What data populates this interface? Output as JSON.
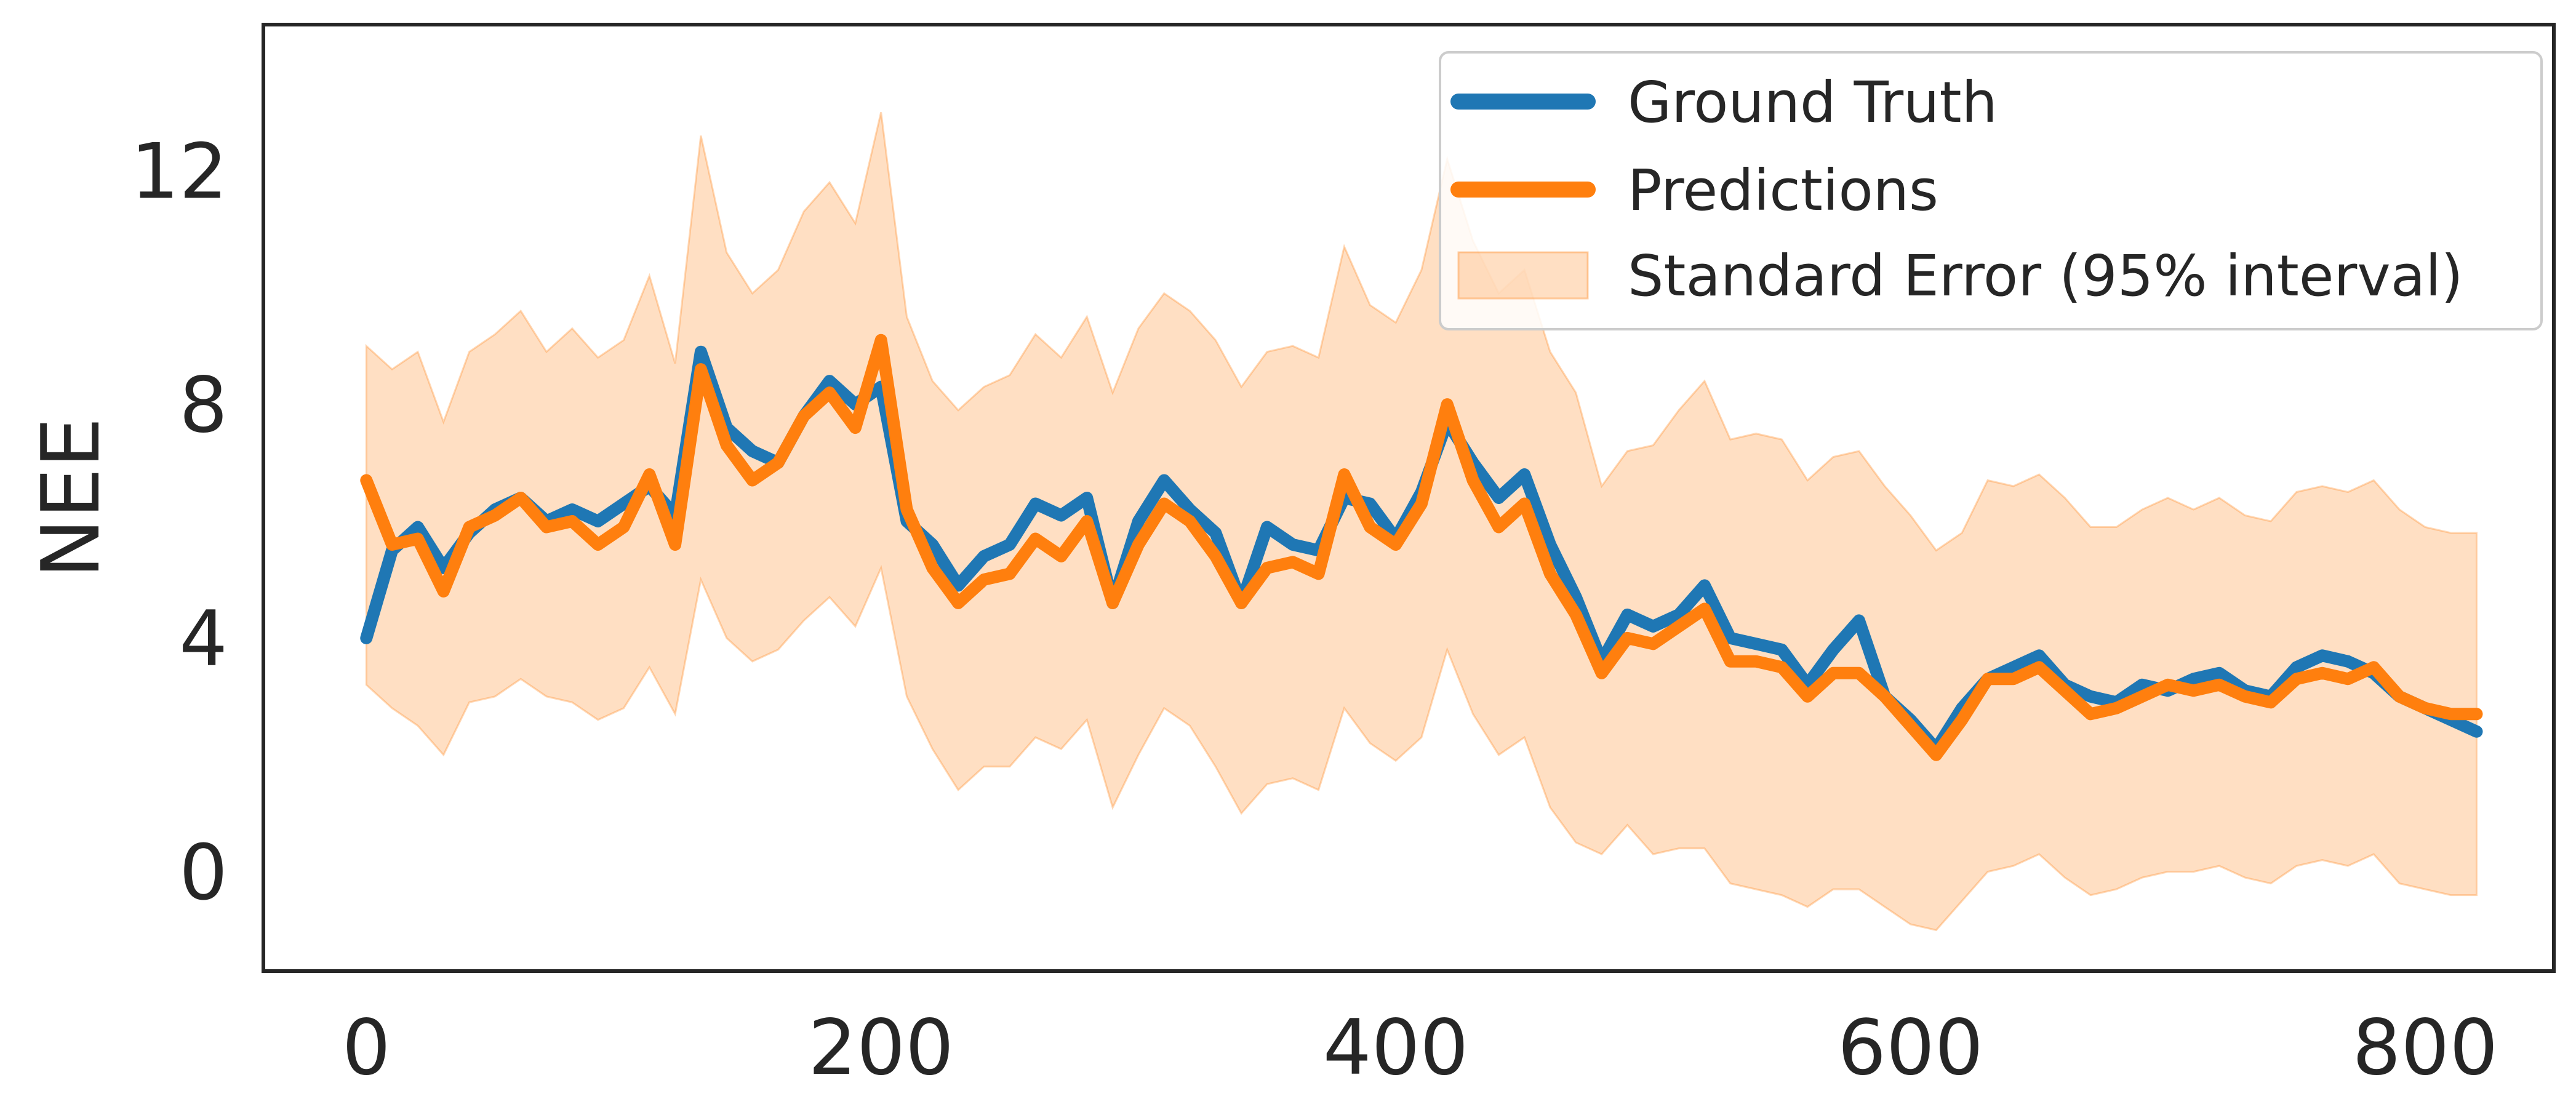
{
  "chart_data": {
    "type": "line",
    "title": "",
    "xlabel": "",
    "ylabel": "NEE",
    "xlim": [
      -40,
      850
    ],
    "ylim": [
      -1.7,
      14.5
    ],
    "xticks": [
      0,
      200,
      400,
      600,
      800
    ],
    "yticks": [
      0,
      4,
      8,
      12
    ],
    "grid": false,
    "legend_position": "top-right",
    "series": [
      {
        "name": "Ground Truth",
        "color": "#1f77b4",
        "x": [
          0,
          10,
          20,
          30,
          40,
          50,
          60,
          70,
          80,
          90,
          100,
          110,
          120,
          130,
          140,
          150,
          160,
          170,
          180,
          190,
          200,
          210,
          220,
          230,
          240,
          250,
          260,
          270,
          280,
          290,
          300,
          310,
          320,
          330,
          340,
          350,
          360,
          370,
          380,
          390,
          400,
          410,
          420,
          430,
          440,
          450,
          460,
          470,
          480,
          490,
          500,
          510,
          520,
          530,
          540,
          550,
          560,
          570,
          580,
          590,
          600,
          610,
          620,
          630,
          640,
          650,
          660,
          670,
          680,
          690,
          700,
          710,
          720,
          730,
          740,
          750,
          760,
          770,
          780,
          790,
          800,
          810,
          820
        ],
        "y": [
          4.0,
          5.5,
          5.9,
          5.2,
          5.8,
          6.2,
          6.4,
          6.0,
          6.2,
          6.0,
          6.3,
          6.6,
          6.1,
          8.9,
          7.6,
          7.2,
          7.0,
          7.8,
          8.4,
          8.0,
          8.3,
          6.0,
          5.6,
          4.9,
          5.4,
          5.6,
          6.3,
          6.1,
          6.4,
          4.6,
          6.0,
          6.7,
          6.2,
          5.8,
          4.6,
          5.9,
          5.6,
          5.5,
          6.4,
          6.3,
          5.7,
          6.5,
          7.7,
          7.0,
          6.4,
          6.8,
          5.6,
          4.7,
          3.6,
          4.4,
          4.2,
          4.4,
          4.9,
          4.0,
          3.9,
          3.8,
          3.2,
          3.8,
          4.3,
          3.0,
          2.6,
          2.1,
          2.8,
          3.3,
          3.5,
          3.7,
          3.2,
          3.0,
          2.9,
          3.2,
          3.1,
          3.3,
          3.4,
          3.1,
          3.0,
          3.5,
          3.7,
          3.6,
          3.4,
          3.0,
          2.8,
          2.6,
          2.4
        ]
      },
      {
        "name": "Predictions",
        "color": "#ff7f0e",
        "x": [
          0,
          10,
          20,
          30,
          40,
          50,
          60,
          70,
          80,
          90,
          100,
          110,
          120,
          130,
          140,
          150,
          160,
          170,
          180,
          190,
          200,
          210,
          220,
          230,
          240,
          250,
          260,
          270,
          280,
          290,
          300,
          310,
          320,
          330,
          340,
          350,
          360,
          370,
          380,
          390,
          400,
          410,
          420,
          430,
          440,
          450,
          460,
          470,
          480,
          490,
          500,
          510,
          520,
          530,
          540,
          550,
          560,
          570,
          580,
          590,
          600,
          610,
          620,
          630,
          640,
          650,
          660,
          670,
          680,
          690,
          700,
          710,
          720,
          730,
          740,
          750,
          760,
          770,
          780,
          790,
          800,
          810,
          820
        ],
        "y": [
          6.7,
          5.6,
          5.7,
          4.8,
          5.9,
          6.1,
          6.4,
          5.9,
          6.0,
          5.6,
          5.9,
          6.8,
          5.6,
          8.6,
          7.3,
          6.7,
          7.0,
          7.8,
          8.2,
          7.6,
          9.1,
          6.2,
          5.2,
          4.6,
          5.0,
          5.1,
          5.7,
          5.4,
          6.0,
          4.6,
          5.6,
          6.3,
          6.0,
          5.4,
          4.6,
          5.2,
          5.3,
          5.1,
          6.8,
          5.9,
          5.6,
          6.3,
          8.0,
          6.7,
          5.9,
          6.3,
          5.1,
          4.4,
          3.4,
          4.0,
          3.9,
          4.2,
          4.5,
          3.6,
          3.6,
          3.5,
          3.0,
          3.4,
          3.4,
          3.0,
          2.5,
          2.0,
          2.6,
          3.3,
          3.3,
          3.5,
          3.1,
          2.7,
          2.8,
          3.0,
          3.2,
          3.1,
          3.2,
          3.0,
          2.9,
          3.3,
          3.4,
          3.3,
          3.5,
          3.0,
          2.8,
          2.7,
          2.7
        ]
      },
      {
        "name": "Standard Error (95% interval)",
        "color": "#ff7f0e",
        "kind": "band",
        "x": [
          0,
          10,
          20,
          30,
          40,
          50,
          60,
          70,
          80,
          90,
          100,
          110,
          120,
          130,
          140,
          150,
          160,
          170,
          180,
          190,
          200,
          210,
          220,
          230,
          240,
          250,
          260,
          270,
          280,
          290,
          300,
          310,
          320,
          330,
          340,
          350,
          360,
          370,
          380,
          390,
          400,
          410,
          420,
          430,
          440,
          450,
          460,
          470,
          480,
          490,
          500,
          510,
          520,
          530,
          540,
          550,
          560,
          570,
          580,
          590,
          600,
          610,
          620,
          630,
          640,
          650,
          660,
          670,
          680,
          690,
          700,
          710,
          720,
          730,
          740,
          750,
          760,
          770,
          780,
          790,
          800,
          810,
          820
        ],
        "lower": [
          3.2,
          2.8,
          2.5,
          2.0,
          2.9,
          3.0,
          3.3,
          3.0,
          2.9,
          2.6,
          2.8,
          3.5,
          2.7,
          5.0,
          4.0,
          3.6,
          3.8,
          4.3,
          4.7,
          4.2,
          5.2,
          3.0,
          2.1,
          1.4,
          1.8,
          1.8,
          2.3,
          2.1,
          2.6,
          1.1,
          2.0,
          2.8,
          2.5,
          1.8,
          1.0,
          1.5,
          1.6,
          1.4,
          2.8,
          2.2,
          1.9,
          2.3,
          3.8,
          2.7,
          2.0,
          2.3,
          1.1,
          0.5,
          0.3,
          0.8,
          0.3,
          0.4,
          0.4,
          -0.2,
          -0.3,
          -0.4,
          -0.6,
          -0.3,
          -0.3,
          -0.6,
          -0.9,
          -1.0,
          -0.5,
          0.0,
          0.1,
          0.3,
          -0.1,
          -0.4,
          -0.3,
          -0.1,
          0.0,
          0.0,
          0.1,
          -0.1,
          -0.2,
          0.1,
          0.2,
          0.1,
          0.3,
          -0.2,
          -0.3,
          -0.4,
          -0.4
        ],
        "upper": [
          9.0,
          8.6,
          8.9,
          7.7,
          8.9,
          9.2,
          9.6,
          8.9,
          9.3,
          8.8,
          9.1,
          10.2,
          8.7,
          12.6,
          10.6,
          9.9,
          10.3,
          11.3,
          11.8,
          11.1,
          13.0,
          9.5,
          8.4,
          7.9,
          8.3,
          8.5,
          9.2,
          8.8,
          9.5,
          8.2,
          9.3,
          9.9,
          9.6,
          9.1,
          8.3,
          8.9,
          9.0,
          8.8,
          10.7,
          9.7,
          9.4,
          10.3,
          12.2,
          10.8,
          9.9,
          10.3,
          8.9,
          8.2,
          6.6,
          7.2,
          7.3,
          7.9,
          8.4,
          7.4,
          7.5,
          7.4,
          6.7,
          7.1,
          7.2,
          6.6,
          6.1,
          5.5,
          5.8,
          6.7,
          6.6,
          6.8,
          6.4,
          5.9,
          5.9,
          6.2,
          6.4,
          6.2,
          6.4,
          6.1,
          6.0,
          6.5,
          6.6,
          6.5,
          6.7,
          6.2,
          5.9,
          5.8,
          5.8
        ]
      }
    ]
  }
}
